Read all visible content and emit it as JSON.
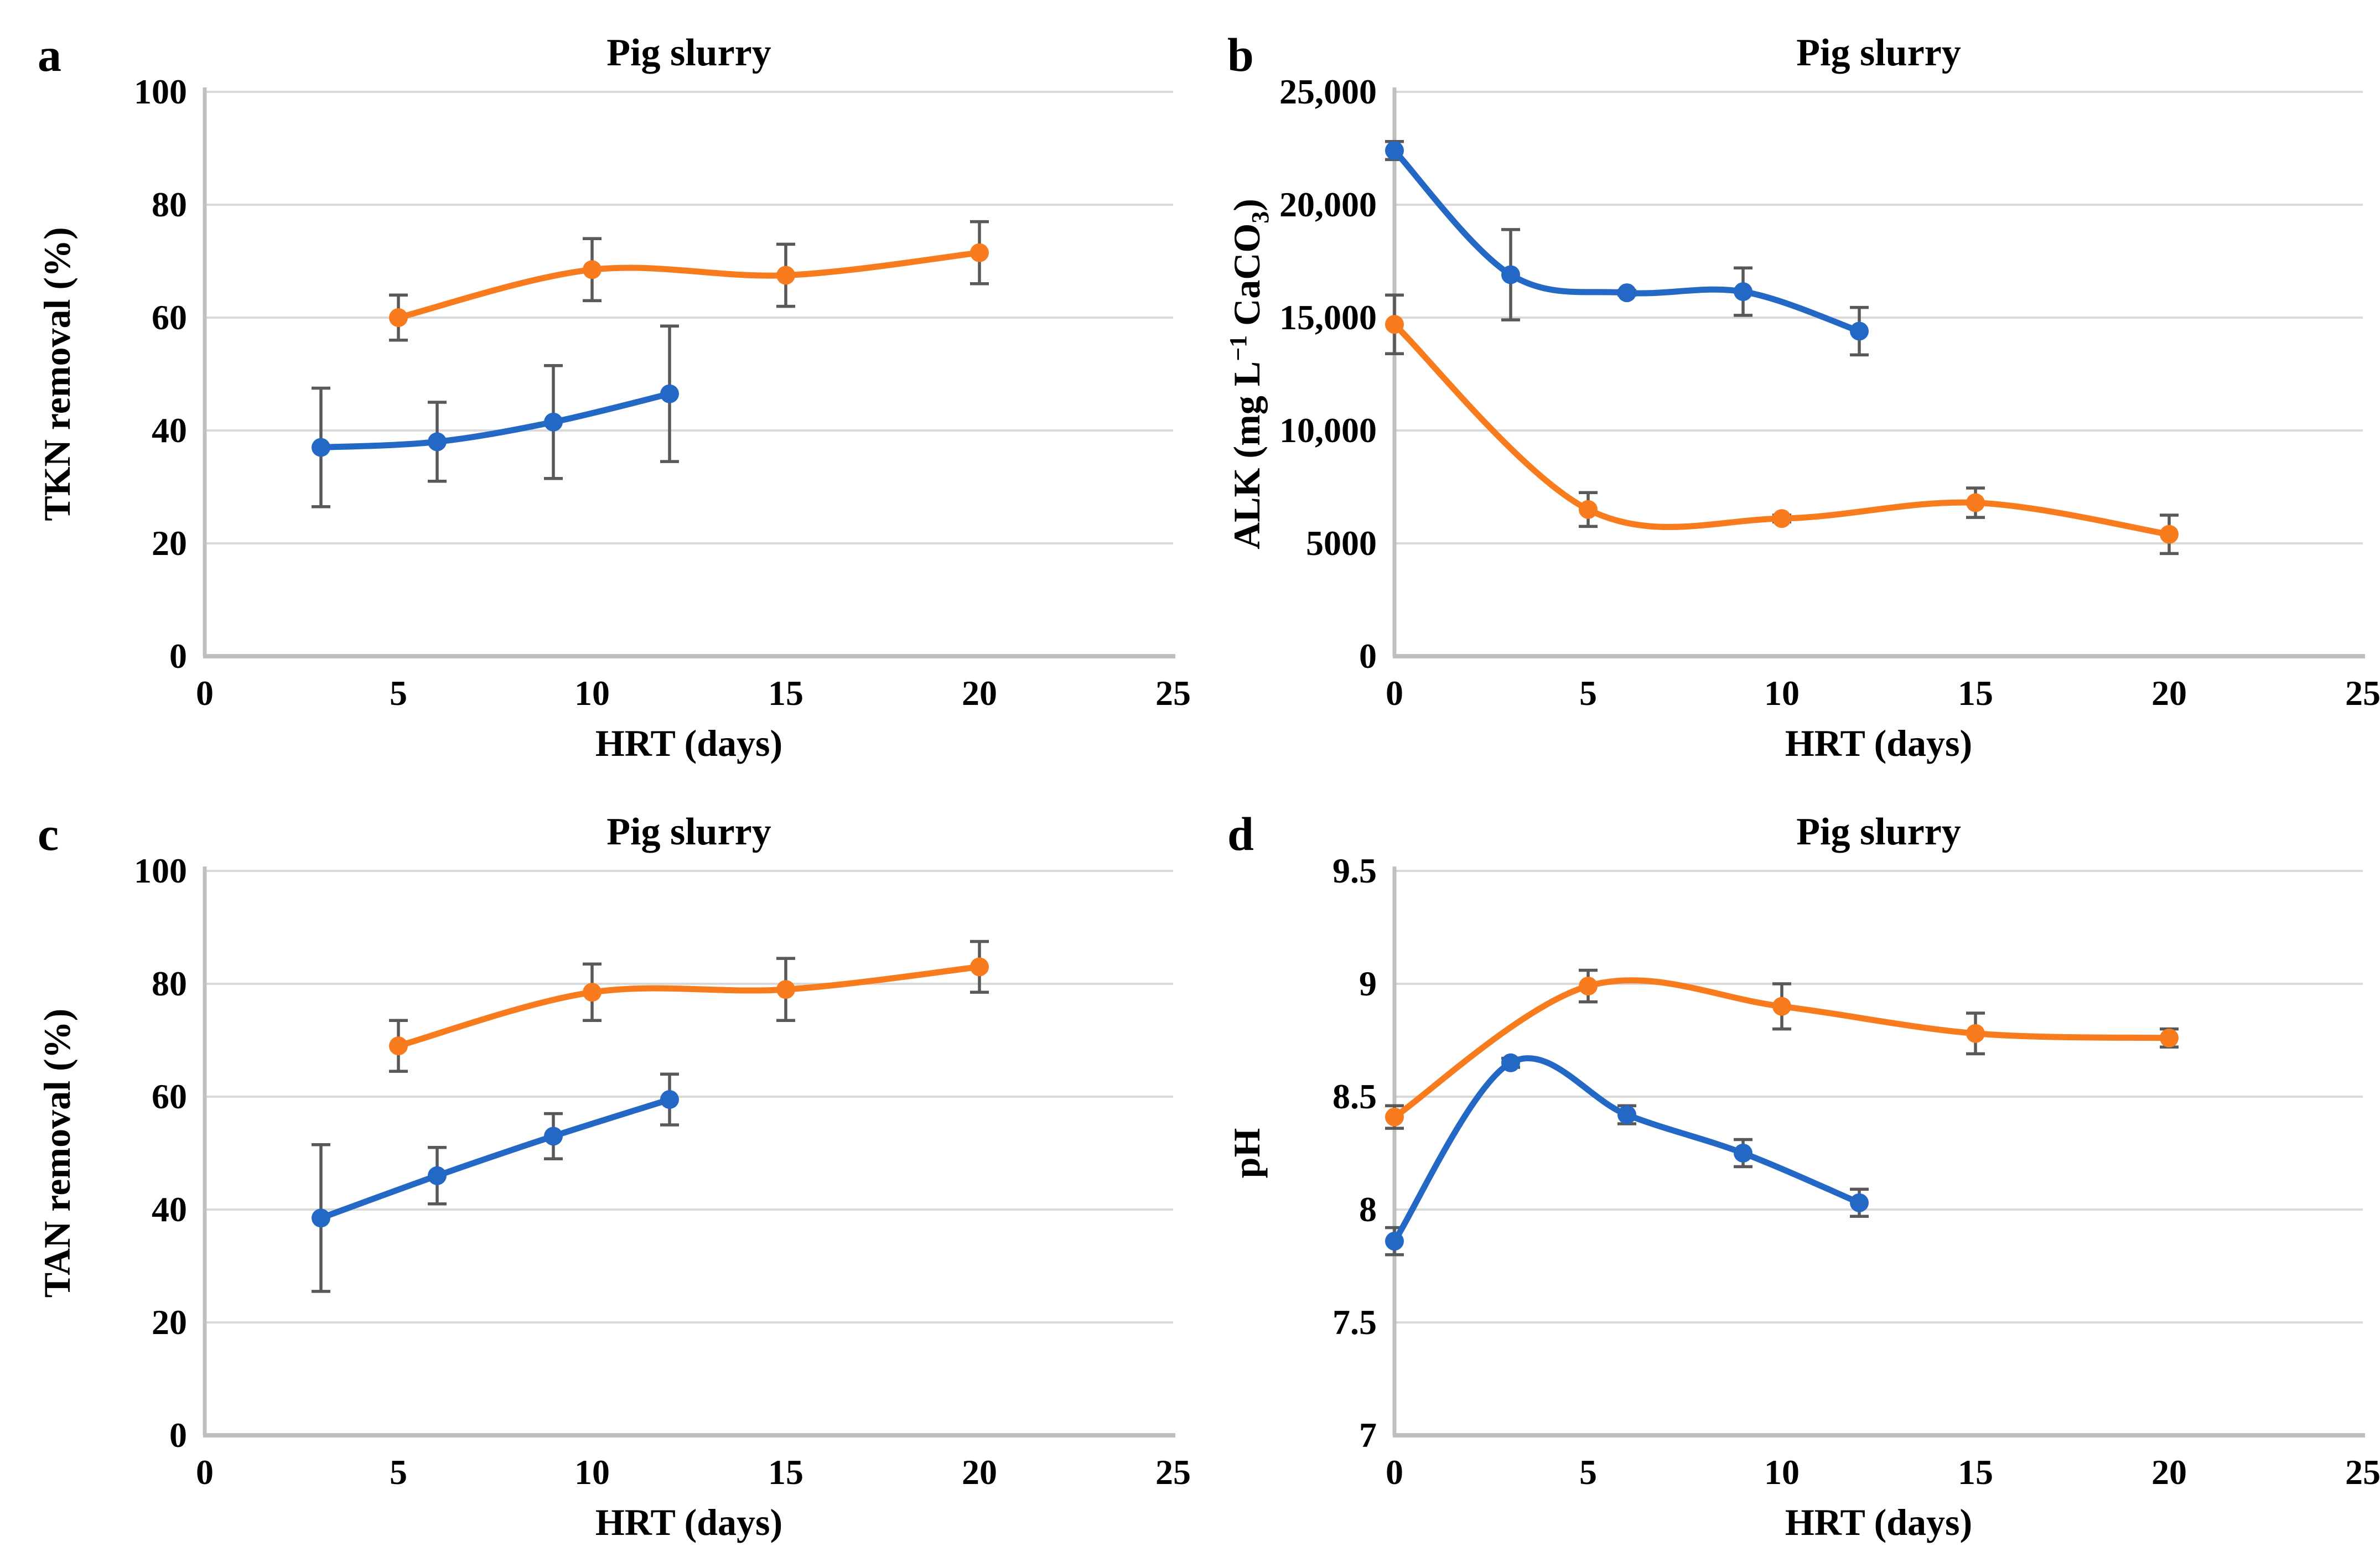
{
  "figure": {
    "background": "#ffffff",
    "columns": 2,
    "rows": 2
  },
  "styles": {
    "series_blue": "#2268C4",
    "series_orange": "#F87B1D",
    "error_bar": "#595959",
    "gridline": "#D9D9D9",
    "axis_line": "#BFBFBF",
    "text_color": "#000000"
  },
  "chart_data": [
    {
      "id": "a",
      "panel_label": "a",
      "type": "line",
      "title": "Pig slurry",
      "xlabel": "HRT (days)",
      "ylabel_parts": [
        {
          "t": "TKN removal (%)"
        }
      ],
      "xlim": [
        0,
        25
      ],
      "ylim": [
        0,
        100
      ],
      "grid": true,
      "legend": "none",
      "xticks": [
        {
          "v": 0,
          "label": "0"
        },
        {
          "v": 5,
          "label": "5"
        },
        {
          "v": 10,
          "label": "10"
        },
        {
          "v": 15,
          "label": "15"
        },
        {
          "v": 20,
          "label": "20"
        },
        {
          "v": 25,
          "label": "25"
        }
      ],
      "yticks": [
        {
          "v": 0,
          "label": "0"
        },
        {
          "v": 20,
          "label": "20"
        },
        {
          "v": 40,
          "label": "40"
        },
        {
          "v": 60,
          "label": "60"
        },
        {
          "v": 80,
          "label": "80"
        },
        {
          "v": 100,
          "label": "100"
        }
      ],
      "series": [
        {
          "color_key": "series_blue",
          "x": [
            3,
            6,
            9,
            12
          ],
          "y": [
            37,
            38,
            41.5,
            46.5
          ],
          "err": [
            10.5,
            7,
            10,
            12
          ]
        },
        {
          "color_key": "series_orange",
          "x": [
            5,
            10,
            15,
            20
          ],
          "y": [
            60,
            68.5,
            67.5,
            71.5
          ],
          "err": [
            4,
            5.5,
            5.5,
            5.5
          ]
        }
      ]
    },
    {
      "id": "b",
      "panel_label": "b",
      "type": "line",
      "title": "Pig slurry",
      "xlabel": "HRT (days)",
      "ylabel_parts": [
        {
          "t": "ALK (mg L"
        },
        {
          "t": "−1",
          "sup": true
        },
        {
          "t": " CaCO"
        },
        {
          "t": "3",
          "sub": true
        },
        {
          "t": ")"
        }
      ],
      "xlim": [
        0,
        25
      ],
      "ylim": [
        0,
        25000
      ],
      "grid": true,
      "legend": "none",
      "xticks": [
        {
          "v": 0,
          "label": "0"
        },
        {
          "v": 5,
          "label": "5"
        },
        {
          "v": 10,
          "label": "10"
        },
        {
          "v": 15,
          "label": "15"
        },
        {
          "v": 20,
          "label": "20"
        },
        {
          "v": 25,
          "label": "25"
        }
      ],
      "yticks": [
        {
          "v": 0,
          "label": "0"
        },
        {
          "v": 5000,
          "label": "5000"
        },
        {
          "v": 10000,
          "label": "10,000"
        },
        {
          "v": 15000,
          "label": "15,000"
        },
        {
          "v": 20000,
          "label": "20,000"
        },
        {
          "v": 25000,
          "label": "25,000"
        }
      ],
      "series": [
        {
          "color_key": "series_blue",
          "x": [
            0,
            3,
            6,
            9,
            12
          ],
          "y": [
            22400,
            16900,
            16100,
            16150,
            14400
          ],
          "err": [
            400,
            2000,
            100,
            1050,
            1050
          ]
        },
        {
          "color_key": "series_orange",
          "x": [
            0,
            5,
            10,
            15,
            20
          ],
          "y": [
            14700,
            6500,
            6100,
            6800,
            5400
          ],
          "err": [
            1300,
            750,
            150,
            650,
            850
          ]
        }
      ]
    },
    {
      "id": "c",
      "panel_label": "c",
      "type": "line",
      "title": "Pig slurry",
      "xlabel": "HRT (days)",
      "ylabel_parts": [
        {
          "t": "TAN removal (%)"
        }
      ],
      "xlim": [
        0,
        25
      ],
      "ylim": [
        0,
        100
      ],
      "grid": true,
      "legend": "none",
      "xticks": [
        {
          "v": 0,
          "label": "0"
        },
        {
          "v": 5,
          "label": "5"
        },
        {
          "v": 10,
          "label": "10"
        },
        {
          "v": 15,
          "label": "15"
        },
        {
          "v": 20,
          "label": "20"
        },
        {
          "v": 25,
          "label": "25"
        }
      ],
      "yticks": [
        {
          "v": 0,
          "label": "0"
        },
        {
          "v": 20,
          "label": "20"
        },
        {
          "v": 40,
          "label": "40"
        },
        {
          "v": 60,
          "label": "60"
        },
        {
          "v": 80,
          "label": "80"
        },
        {
          "v": 100,
          "label": "100"
        }
      ],
      "series": [
        {
          "color_key": "series_blue",
          "x": [
            3,
            6,
            9,
            12
          ],
          "y": [
            38.5,
            46,
            53,
            59.5
          ],
          "err": [
            13,
            5,
            4,
            4.5
          ]
        },
        {
          "color_key": "series_orange",
          "x": [
            5,
            10,
            15,
            20
          ],
          "y": [
            69,
            78.5,
            79,
            83
          ],
          "err": [
            4.5,
            5,
            5.5,
            4.5
          ]
        }
      ]
    },
    {
      "id": "d",
      "panel_label": "d",
      "type": "line",
      "title": "Pig slurry",
      "xlabel": "HRT (days)",
      "ylabel_parts": [
        {
          "t": "pH"
        }
      ],
      "xlim": [
        0,
        25
      ],
      "ylim": [
        7,
        9.5
      ],
      "grid": true,
      "legend": "none",
      "xticks": [
        {
          "v": 0,
          "label": "0"
        },
        {
          "v": 5,
          "label": "5"
        },
        {
          "v": 10,
          "label": "10"
        },
        {
          "v": 15,
          "label": "15"
        },
        {
          "v": 20,
          "label": "20"
        },
        {
          "v": 25,
          "label": "25"
        }
      ],
      "yticks": [
        {
          "v": 7,
          "label": "7"
        },
        {
          "v": 7.5,
          "label": "7.5"
        },
        {
          "v": 8,
          "label": "8"
        },
        {
          "v": 8.5,
          "label": "8.5"
        },
        {
          "v": 9,
          "label": "9"
        },
        {
          "v": 9.5,
          "label": "9.5"
        }
      ],
      "series": [
        {
          "color_key": "series_blue",
          "x": [
            0,
            3,
            6,
            9,
            12
          ],
          "y": [
            7.86,
            8.65,
            8.42,
            8.25,
            8.03
          ],
          "err": [
            0.06,
            0.02,
            0.04,
            0.06,
            0.06
          ]
        },
        {
          "color_key": "series_orange",
          "x": [
            0,
            5,
            10,
            15,
            20
          ],
          "y": [
            8.41,
            8.99,
            8.9,
            8.78,
            8.76
          ],
          "err": [
            0.05,
            0.07,
            0.1,
            0.09,
            0.04
          ]
        }
      ]
    }
  ]
}
